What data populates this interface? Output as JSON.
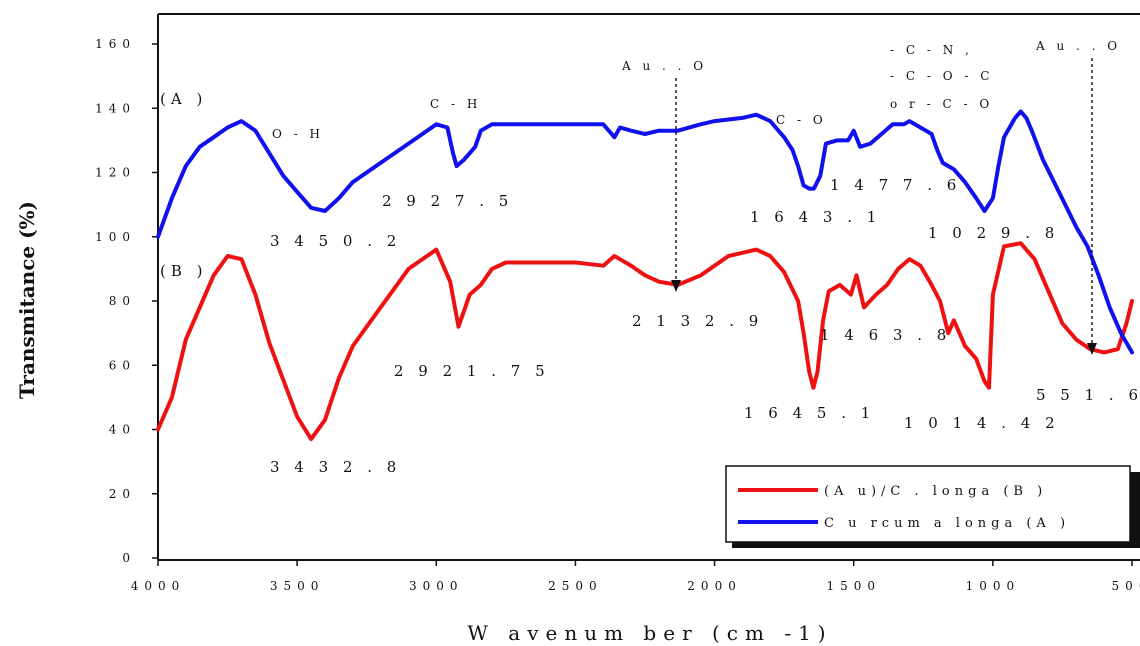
{
  "chart_data": {
    "type": "line",
    "xlabel": "W avenum ber (cm -1)",
    "ylabel": "Transmitance (%)",
    "xlim": [
      4000,
      500
    ],
    "ylim": [
      0,
      160
    ],
    "x_ticks": [
      "4000",
      "3500",
      "3000",
      "2500",
      "2000",
      "1500",
      "1000",
      "500"
    ],
    "y_ticks": [
      "0",
      "20",
      "40",
      "60",
      "80",
      "100",
      "120",
      "140",
      "160"
    ],
    "legend": {
      "position": "bottom-right"
    },
    "series": [
      {
        "name": "(A u)/C . longa (B )",
        "color": "#ee1111",
        "x": [
          4000,
          3950,
          3900,
          3800,
          3750,
          3700,
          3650,
          3600,
          3500,
          3450,
          3400,
          3350,
          3300,
          3200,
          3100,
          3000,
          2950,
          2920,
          2880,
          2840,
          2800,
          2750,
          2700,
          2600,
          2500,
          2400,
          2360,
          2300,
          2250,
          2200,
          2132,
          2050,
          2000,
          1950,
          1900,
          1850,
          1800,
          1750,
          1700,
          1680,
          1660,
          1645,
          1630,
          1610,
          1590,
          1550,
          1510,
          1490,
          1463,
          1420,
          1380,
          1340,
          1300,
          1260,
          1220,
          1190,
          1160,
          1140,
          1100,
          1060,
          1030,
          1014,
          1000,
          960,
          900,
          850,
          800,
          750,
          700,
          650,
          600,
          551,
          520,
          500
        ],
        "y": [
          40,
          50,
          68,
          88,
          94,
          93,
          82,
          67,
          44,
          37,
          43,
          56,
          66,
          78,
          90,
          96,
          86,
          72,
          82,
          85,
          90,
          92,
          92,
          92,
          92,
          91,
          94,
          91,
          88,
          86,
          85,
          88,
          91,
          94,
          95,
          96,
          94,
          89,
          80,
          70,
          58,
          53,
          58,
          74,
          83,
          85,
          82,
          88,
          78,
          82,
          85,
          90,
          93,
          91,
          85,
          80,
          70,
          74,
          66,
          62,
          55,
          53,
          82,
          97,
          98,
          93,
          83,
          73,
          68,
          65,
          64,
          65,
          73,
          80
        ]
      },
      {
        "name": "C u rcum a longa (A )",
        "color": "#1111ee",
        "x": [
          4000,
          3950,
          3900,
          3850,
          3800,
          3750,
          3700,
          3650,
          3600,
          3550,
          3500,
          3450,
          3400,
          3350,
          3300,
          3200,
          3100,
          3050,
          3000,
          2960,
          2940,
          2927,
          2900,
          2880,
          2860,
          2840,
          2800,
          2700,
          2600,
          2500,
          2400,
          2360,
          2340,
          2300,
          2250,
          2200,
          2132,
          2050,
          2000,
          1900,
          1850,
          1800,
          1750,
          1720,
          1700,
          1680,
          1660,
          1643,
          1620,
          1600,
          1560,
          1520,
          1500,
          1477,
          1440,
          1400,
          1360,
          1320,
          1300,
          1260,
          1220,
          1200,
          1180,
          1160,
          1140,
          1100,
          1060,
          1030,
          1000,
          980,
          960,
          940,
          920,
          900,
          880,
          860,
          820,
          780,
          740,
          700,
          660,
          620,
          580,
          540,
          500
        ],
        "y": [
          100,
          112,
          122,
          128,
          131,
          134,
          136,
          133,
          126,
          119,
          114,
          109,
          108,
          112,
          117,
          123,
          129,
          132,
          135,
          134,
          126,
          122,
          124,
          126,
          128,
          133,
          135,
          135,
          135,
          135,
          135,
          131,
          134,
          133,
          132,
          133,
          133,
          135,
          136,
          137,
          138,
          136,
          131,
          127,
          122,
          116,
          115,
          115,
          119,
          129,
          130,
          130,
          133,
          128,
          129,
          132,
          135,
          135,
          136,
          134,
          132,
          127,
          123,
          122,
          121,
          117,
          112,
          108,
          112,
          122,
          131,
          134,
          137,
          139,
          137,
          133,
          124,
          117,
          110,
          103,
          97,
          88,
          78,
          70,
          64
        ]
      }
    ],
    "annotations": {
      "oh": "O - H",
      "ch": "C - H",
      "co": "C - O",
      "au_o_1": "A u  . . O",
      "au_o_2": "A u  . . O",
      "cn_1": "- C  - N ,",
      "cn_2": "- C  - O - C",
      "cn_3": "o r  - C  - O",
      "label_a": "(A )",
      "label_b": "(B )",
      "p3450": "3 4 5 0 . 2",
      "p2927": "2 9 2 7 . 5",
      "p1643": "1 6 4 3 . 1",
      "p1477": "1 4 7 7 . 6",
      "p1029": "1 0 2 9 . 8",
      "p3432": "3 4 3 2 . 8",
      "p2921": "2 9 2 1 . 7 5",
      "p2132": "2 1 3 2 . 9",
      "p1645": "1 6 4 5 . 1",
      "p1463": "1 4 6 3 . 8",
      "p1014": "1 0 1 4 . 4 2",
      "p551": "5 5 1 . 6"
    }
  }
}
